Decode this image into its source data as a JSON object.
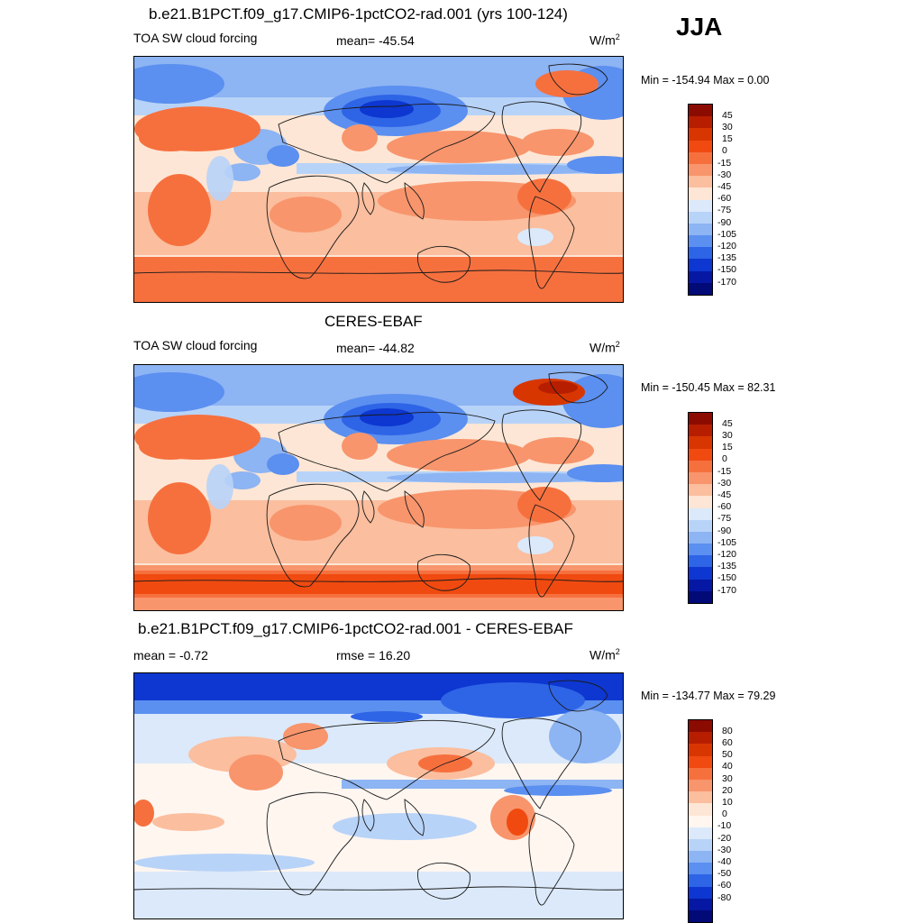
{
  "season": "JJA",
  "panels": [
    {
      "id": "model",
      "title": "b.e21.B1PCT.f09_g17.CMIP6-1pctCO2-rad.001 (yrs 100-124)",
      "left_label": "TOA SW cloud forcing",
      "center_label": "mean= -45.54",
      "units_base": "W/m",
      "units_sup": "2",
      "minmax": "Min = -154.94 Max =    0.00",
      "palette": "abs",
      "variant": "model"
    },
    {
      "id": "obs",
      "title": "CERES-EBAF",
      "left_label": "TOA SW cloud forcing",
      "center_label": "mean= -44.82",
      "units_base": "W/m",
      "units_sup": "2",
      "minmax": "Min = -150.45 Max =  82.31",
      "palette": "abs",
      "variant": "obs"
    },
    {
      "id": "diff",
      "title": "b.e21.B1PCT.f09_g17.CMIP6-1pctCO2-rad.001 - CERES-EBAF",
      "left_label": "mean =  -0.72",
      "center_label": "rmse =  16.20",
      "units_base": "W/m",
      "units_sup": "2",
      "minmax": "Min = -134.77 Max =  79.29",
      "palette": "diff",
      "variant": "diff"
    }
  ],
  "chart_data": [
    {
      "type": "heatmap",
      "title": "b.e21.B1PCT.f09_g17.CMIP6-1pctCO2-rad.001 (yrs 100-124)",
      "variable": "TOA SW cloud forcing",
      "units": "W/m2",
      "mean": -45.54,
      "min": -154.94,
      "max": 0.0,
      "colorbar_levels": [
        45,
        30,
        15,
        0,
        -15,
        -30,
        -45,
        -60,
        -75,
        -90,
        -105,
        -120,
        -135,
        -150,
        -170
      ]
    },
    {
      "type": "heatmap",
      "title": "CERES-EBAF",
      "variable": "TOA SW cloud forcing",
      "units": "W/m2",
      "mean": -44.82,
      "min": -150.45,
      "max": 82.31,
      "colorbar_levels": [
        45,
        30,
        15,
        0,
        -15,
        -30,
        -45,
        -60,
        -75,
        -90,
        -105,
        -120,
        -135,
        -150,
        -170
      ]
    },
    {
      "type": "heatmap",
      "title": "b.e21.B1PCT.f09_g17.CMIP6-1pctCO2-rad.001 - CERES-EBAF",
      "variable": "difference",
      "units": "W/m2",
      "mean": -0.72,
      "rmse": 16.2,
      "min": -134.77,
      "max": 79.29,
      "colorbar_levels": [
        80,
        60,
        50,
        40,
        30,
        20,
        10,
        0,
        -10,
        -20,
        -30,
        -40,
        -50,
        -60,
        -80
      ]
    }
  ],
  "colors": {
    "abs": [
      "#8c0b00",
      "#b71e00",
      "#d83600",
      "#f04a10",
      "#f6703e",
      "#f8956c",
      "#fbbe9e",
      "#fde6d5",
      "#dbe9fa",
      "#b8d3f8",
      "#8db4f3",
      "#5b8ff0",
      "#2e64e6",
      "#0d37d0",
      "#0618a3",
      "#020a78"
    ],
    "diff": [
      "#8c0b00",
      "#b71e00",
      "#d83600",
      "#f04a10",
      "#f6703e",
      "#f8956c",
      "#fbbe9e",
      "#fde6d5",
      "#fff6f0",
      "#dbe9fa",
      "#b8d3f8",
      "#8db4f3",
      "#5b8ff0",
      "#2e64e6",
      "#0d37d0",
      "#0618a3",
      "#020a78"
    ]
  }
}
